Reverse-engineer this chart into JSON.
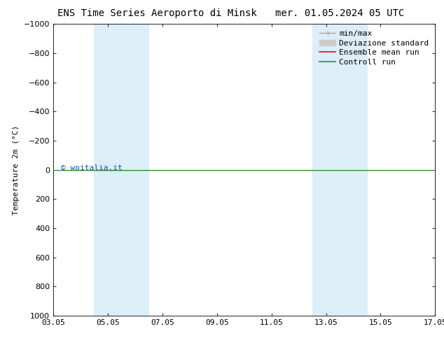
{
  "title_left": "ENS Time Series Aeroporto di Minsk",
  "title_right": "mer. 01.05.2024 05 UTC",
  "ylabel": "Temperature 2m (°C)",
  "watermark": "© woitalia.it",
  "ylim_top": -1000,
  "ylim_bottom": 1000,
  "yticks": [
    -1000,
    -800,
    -600,
    -400,
    -200,
    0,
    200,
    400,
    600,
    800,
    1000
  ],
  "xtick_labels": [
    "03.05",
    "05.05",
    "07.05",
    "09.05",
    "11.05",
    "13.05",
    "15.05",
    "17.05"
  ],
  "xtick_positions": [
    0,
    2,
    4,
    6,
    8,
    10,
    12,
    14
  ],
  "xlim": [
    0,
    14
  ],
  "shaded_bands": [
    {
      "x_start": 1.5,
      "x_end": 2.5
    },
    {
      "x_start": 2.5,
      "x_end": 3.5
    },
    {
      "x_start": 9.5,
      "x_end": 10.5
    },
    {
      "x_start": 10.5,
      "x_end": 11.5
    }
  ],
  "shade_color": "#dceef8",
  "ensemble_mean_color": "#ff0000",
  "control_run_color": "#338833",
  "minmax_color": "#aaaaaa",
  "std_color": "#cccccc",
  "background_color": "#ffffff",
  "plot_bg_color": "#ffffff",
  "legend_items": [
    {
      "label": "min/max"
    },
    {
      "label": "Deviazione standard"
    },
    {
      "label": "Ensemble mean run"
    },
    {
      "label": "Controll run"
    }
  ],
  "flat_value": 0,
  "title_fontsize": 10,
  "tick_fontsize": 8,
  "legend_fontsize": 8,
  "ylabel_fontsize": 8
}
